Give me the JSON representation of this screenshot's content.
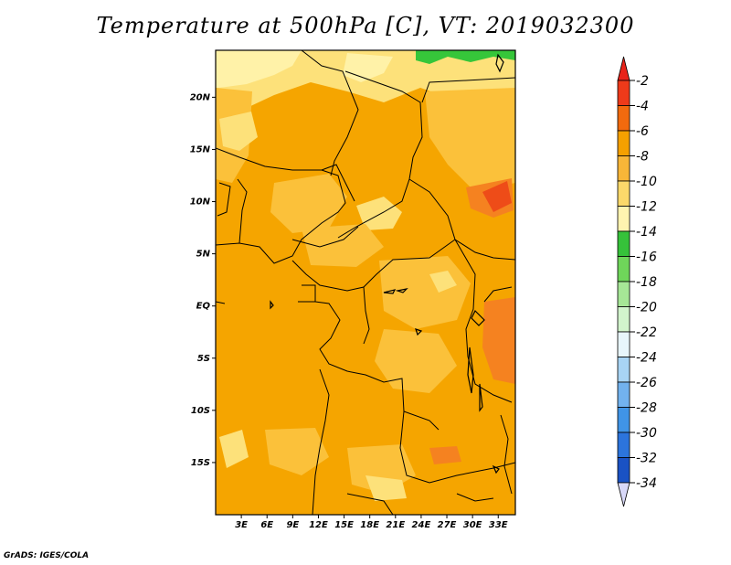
{
  "title": "Temperature at 500hPa [C], VT: 2019032300",
  "credit": "GrADS: IGES/COLA",
  "map": {
    "lon_range": [
      0,
      35
    ],
    "lat_range": [
      -20,
      24.5
    ],
    "lat_ticks": [
      {
        "value": 20,
        "label": "20N"
      },
      {
        "value": 15,
        "label": "15N"
      },
      {
        "value": 10,
        "label": "10N"
      },
      {
        "value": 5,
        "label": "5N"
      },
      {
        "value": 0,
        "label": "EQ"
      },
      {
        "value": -5,
        "label": "5S"
      },
      {
        "value": -10,
        "label": "10S"
      },
      {
        "value": -15,
        "label": "15S"
      }
    ],
    "lon_ticks": [
      {
        "value": 3,
        "label": "3E"
      },
      {
        "value": 6,
        "label": "6E"
      },
      {
        "value": 9,
        "label": "9E"
      },
      {
        "value": 12,
        "label": "12E"
      },
      {
        "value": 15,
        "label": "15E"
      },
      {
        "value": 18,
        "label": "18E"
      },
      {
        "value": 21,
        "label": "21E"
      },
      {
        "value": 24,
        "label": "24E"
      },
      {
        "value": 27,
        "label": "27E"
      },
      {
        "value": 30,
        "label": "30E"
      },
      {
        "value": 33,
        "label": "33E"
      }
    ],
    "colors": {
      "base": "#f5a500",
      "light": "#fbc13a",
      "pale": "#fde17a",
      "verypale": "#fff2a8",
      "hot": "#f58220",
      "hottest": "#ee4c18",
      "cold_green": "#36c63a",
      "border": "#000000"
    }
  },
  "colorbar": {
    "bins": [
      {
        "label": "-2",
        "color": "#ee3a1a"
      },
      {
        "label": "-4",
        "color": "#f26a0e"
      },
      {
        "label": "-6",
        "color": "#f5a000"
      },
      {
        "label": "-8",
        "color": "#f8b638"
      },
      {
        "label": "-10",
        "color": "#fbd86a"
      },
      {
        "label": "-12",
        "color": "#fff4b0"
      },
      {
        "label": "-14",
        "color": "#36c23a"
      },
      {
        "label": "-16",
        "color": "#6fd65a"
      },
      {
        "label": "-18",
        "color": "#a6e696"
      },
      {
        "label": "-20",
        "color": "#d2f4cc"
      },
      {
        "label": "-22",
        "color": "#e8f6fb"
      },
      {
        "label": "-24",
        "color": "#a8d4f4"
      },
      {
        "label": "-26",
        "color": "#72b2ee"
      },
      {
        "label": "-28",
        "color": "#4094e6"
      },
      {
        "label": "-30",
        "color": "#2c74dc"
      },
      {
        "label": "-32",
        "color": "#1a52c4"
      },
      {
        "label": "-34",
        "color": "#0c2a9a"
      }
    ],
    "top_cap_color": "#e8231a",
    "bottom_cap_color": "#d8d8f8"
  }
}
